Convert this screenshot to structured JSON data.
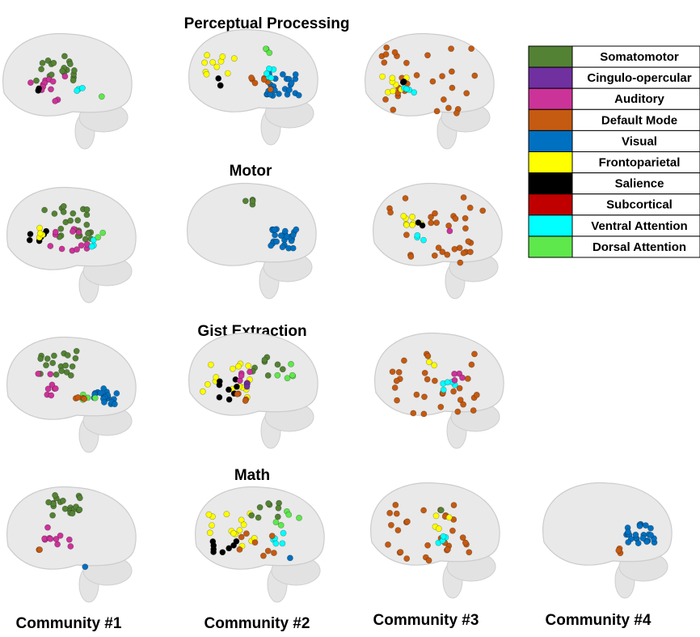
{
  "rows": [
    {
      "title": "Perceptual Processing"
    },
    {
      "title": "Motor"
    },
    {
      "title": "Gist Extraction"
    },
    {
      "title": "Math"
    }
  ],
  "columns": [
    "Community #1",
    "Community #2",
    "Community #3",
    "Community #4"
  ],
  "legend": [
    {
      "label": "Somatomotor",
      "color": "#548235"
    },
    {
      "label": "Cingulo-opercular",
      "color": "#7030a0"
    },
    {
      "label": "Auditory",
      "color": "#cc3399"
    },
    {
      "label": "Default Mode",
      "color": "#c55a11"
    },
    {
      "label": "Visual",
      "color": "#0070c0"
    },
    {
      "label": "Frontoparietal",
      "color": "#ffff00"
    },
    {
      "label": "Salience",
      "color": "#000000"
    },
    {
      "label": "Subcortical",
      "color": "#c00000"
    },
    {
      "label": "Ventral Attention",
      "color": "#00ffff"
    },
    {
      "label": "Dorsal Attention",
      "color": "#5ee84b"
    }
  ]
}
